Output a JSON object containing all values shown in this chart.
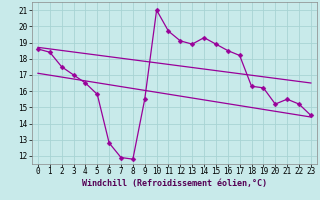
{
  "xlabel": "Windchill (Refroidissement éolien,°C)",
  "bg_color": "#c8eaea",
  "grid_color": "#a8d4d4",
  "line_color": "#990099",
  "xlim": [
    -0.5,
    23.5
  ],
  "ylim": [
    11.5,
    21.5
  ],
  "xticks": [
    0,
    1,
    2,
    3,
    4,
    5,
    6,
    7,
    8,
    9,
    10,
    11,
    12,
    13,
    14,
    15,
    16,
    17,
    18,
    19,
    20,
    21,
    22,
    23
  ],
  "yticks": [
    12,
    13,
    14,
    15,
    16,
    17,
    18,
    19,
    20,
    21
  ],
  "line1_x": [
    0,
    1,
    2,
    3,
    4,
    5,
    6,
    7,
    8,
    9,
    10,
    11,
    12,
    13,
    14,
    15,
    16,
    17,
    18,
    19,
    20,
    21,
    22,
    23
  ],
  "line1_y": [
    18.6,
    18.4,
    17.5,
    17.0,
    16.5,
    15.8,
    12.8,
    11.9,
    11.8,
    15.5,
    21.0,
    19.7,
    19.1,
    18.9,
    19.3,
    18.9,
    18.5,
    18.2,
    16.3,
    16.2,
    15.2,
    15.5,
    15.2,
    14.5
  ],
  "line2_x": [
    0,
    23
  ],
  "line2_y": [
    18.7,
    16.5
  ],
  "line3_x": [
    0,
    23
  ],
  "line3_y": [
    17.1,
    14.4
  ],
  "xlabel_color": "#550055",
  "xlabel_fontsize": 6.0,
  "tick_fontsize": 5.5,
  "marker_size": 2.5,
  "linewidth": 0.9
}
